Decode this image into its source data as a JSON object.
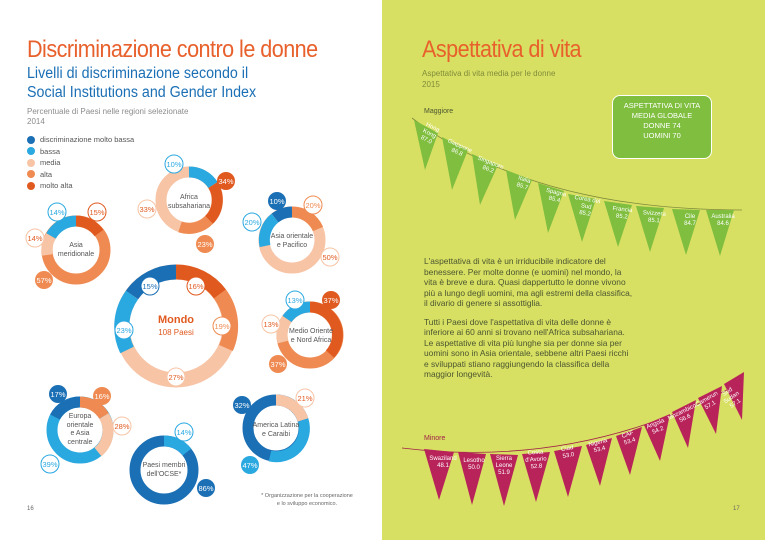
{
  "left": {
    "title": "Discriminazione contro le donne",
    "subtitle_line1": "Livelli di discriminazione secondo il",
    "subtitle_line2": "Social Institutions and Gender Index",
    "note_line1": "Percentuale di Paesi nelle regioni selezionate",
    "note_line2": "2014",
    "legend": [
      {
        "label": "discriminazione molto bassa",
        "color": "#1b6fb5"
      },
      {
        "label": "bassa",
        "color": "#2aa8e0"
      },
      {
        "label": "media",
        "color": "#f7c4a5"
      },
      {
        "label": "alta",
        "color": "#ef8b52"
      },
      {
        "label": "molto alta",
        "color": "#e05a20"
      }
    ],
    "rings": {
      "africa": {
        "label1": "Africa",
        "label2": "subsahariana",
        "p_low": "10%",
        "p_vhigh": "34%",
        "p_high": "23%",
        "p_med": "33%"
      },
      "asia_m": {
        "label1": "Asia",
        "label2": "meridionale",
        "p_low": "14%",
        "p_vhigh": "15%",
        "p_med": "14%",
        "p_high": "57%"
      },
      "asia_o": {
        "label1": "Asia orientale",
        "label2": "e Pacifico",
        "p_vlow": "10%",
        "p_high": "20%",
        "p_low": "20%",
        "p_med": "50%"
      },
      "mondo": {
        "label1": "Mondo",
        "label2": "108 Paesi",
        "p_vlow": "15%",
        "p_vhigh": "16%",
        "p_low": "23%",
        "p_high": "19%",
        "p_med": "27%"
      },
      "mo": {
        "label1": "Medio Oriente",
        "label2": "e Nord Africa",
        "p_low": "13%",
        "p_vhigh": "37%",
        "p_med": "13%",
        "p_high": "37%"
      },
      "europa": {
        "label1": "Europa",
        "label2": "orientale",
        "label3": "e Asia",
        "label4": "centrale",
        "p_vlow": "17%",
        "p_high": "16%",
        "p_med": "28%",
        "p_low": "39%"
      },
      "america": {
        "label1": "America Latina",
        "label2": "e Caraibi",
        "p_vlow": "32%",
        "p_med": "21%",
        "p_low": "47%"
      },
      "ocse": {
        "label1": "Paesi membri",
        "label2": "dell'OCSE*",
        "p_low": "14%",
        "p_vlow": "86%"
      }
    },
    "footnote_line1": "* Organizzazione per la cooperazione",
    "footnote_line2": "e lo sviluppo economico.",
    "page_number": "16"
  },
  "right": {
    "title": "Aspettativa di vita",
    "subtitle_line1": "Aspettativa di vita media per le donne",
    "subtitle_line2": "2015",
    "top_label": "Maggiore",
    "bottom_label": "Minore",
    "top_flags": [
      {
        "name": "Hong Kong",
        "value": "87.0"
      },
      {
        "name": "Giappone",
        "value": "86.8"
      },
      {
        "name": "Singapore",
        "value": "86.2"
      },
      {
        "name": "Italia",
        "value": "85.7"
      },
      {
        "name": "Spagna",
        "value": "85.4"
      },
      {
        "name": "Corea del Sud",
        "value": "85.2"
      },
      {
        "name": "Francia",
        "value": "85.2"
      },
      {
        "name": "Svizzera",
        "value": "85.1"
      },
      {
        "name": "Cile",
        "value": "84.7"
      },
      {
        "name": "Australia",
        "value": "84.6"
      }
    ],
    "bottom_flags": [
      {
        "name": "Swaziland",
        "value": "48.1"
      },
      {
        "name": "Lesotho",
        "value": "50.0"
      },
      {
        "name": "Sierra Leone",
        "value": "51.9"
      },
      {
        "name": "Costa d'Avorio",
        "value": "52.8"
      },
      {
        "name": "Ciad",
        "value": "53.0"
      },
      {
        "name": "Nigeria",
        "value": "53.4"
      },
      {
        "name": "CAF",
        "value": "53.4"
      },
      {
        "name": "Angola",
        "value": "54.2"
      },
      {
        "name": "Mozambico",
        "value": "56.6"
      },
      {
        "name": "Camerun",
        "value": "57.1"
      },
      {
        "name": "Sud Sudan",
        "value": "57.1"
      }
    ],
    "box_line1": "ASPETTATIVA DI VITA",
    "box_line2": "MEDIA GLOBALE",
    "box_line3": "DONNE 74",
    "box_line4": "UOMINI 70",
    "para1": "L'aspettativa di vita è un irriducibile indicatore del benessere. Per molte donne (e uomini) nel mondo, la vita è breve e dura. Quasi dappertutto le donne vivono più a lungo degli uomini, ma agli estremi della classifica, il divario di genere si assottiglia.",
    "para2": "Tutti i Paesi dove l'aspettativa di vita delle donne è inferiore ai 60 anni si trovano nell'Africa subsahariana. Le aspettative di vita più lunghe sia per donne sia per uomini sono in Asia orientale, sebbene altri Paesi ricchi e sviluppati stiano raggiungendo la classifica della maggior longevità.",
    "page_number": "17"
  }
}
